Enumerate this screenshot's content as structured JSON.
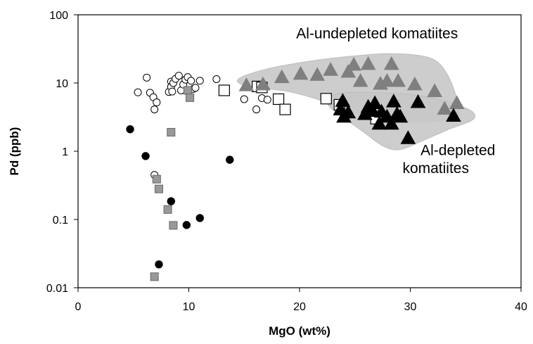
{
  "chart_data": {
    "type": "scatter",
    "xlabel": "MgO (wt%)",
    "ylabel": "Pd (ppb)",
    "xlim": [
      0,
      40
    ],
    "ylim": [
      0.01,
      100
    ],
    "yscale": "log",
    "x_ticks": [
      "0",
      "10",
      "20",
      "30",
      "40"
    ],
    "y_ticks": [
      "0.01",
      "0.1",
      "1",
      "10",
      "100"
    ],
    "grid": false,
    "annotations": [
      {
        "text": "Al-undepleted komatiites",
        "x": 27,
        "y": 45
      },
      {
        "text": "Al-depleted",
        "x": 34.3,
        "y": 0.88
      },
      {
        "text": "komatiites",
        "x": 32.3,
        "y": 0.48
      }
    ],
    "regions": [
      {
        "label": "Al-undepleted komatiites",
        "color": "#c8c8c8",
        "outline": [
          [
            14.5,
            11.5
          ],
          [
            17,
            16
          ],
          [
            21,
            21
          ],
          [
            25,
            25
          ],
          [
            28,
            27
          ],
          [
            31,
            25
          ],
          [
            32.5,
            20
          ],
          [
            33.5,
            12
          ],
          [
            34.2,
            6
          ],
          [
            34.5,
            4
          ],
          [
            34,
            3
          ],
          [
            31,
            2.7
          ],
          [
            28,
            2.8
          ],
          [
            26,
            3.3
          ],
          [
            24.5,
            3.8
          ],
          [
            23,
            4.8
          ],
          [
            21,
            6.2
          ],
          [
            19,
            7.5
          ],
          [
            17,
            8.3
          ],
          [
            15,
            9.2
          ]
        ]
      },
      {
        "label": "Al-depleted komatiites",
        "color": "#c8c8c8",
        "outline": [
          [
            22.5,
            6
          ],
          [
            24,
            7.2
          ],
          [
            27,
            7.2
          ],
          [
            30,
            6.8
          ],
          [
            33,
            5.5
          ],
          [
            35,
            4.3
          ],
          [
            35.8,
            3.5
          ],
          [
            35.5,
            2.8
          ],
          [
            33.5,
            2.1
          ],
          [
            31,
            1.4
          ],
          [
            29,
            1.05
          ],
          [
            27.5,
            1.2
          ],
          [
            26,
            1.8
          ],
          [
            24.5,
            2.7
          ],
          [
            23.2,
            3.8
          ],
          [
            22.5,
            5
          ]
        ]
      }
    ],
    "series": [
      {
        "marker": "open-circle",
        "color": "#ffffff",
        "points": [
          [
            5.4,
            7.3
          ],
          [
            6.2,
            12
          ],
          [
            6.5,
            7.2
          ],
          [
            6.8,
            6.2
          ],
          [
            6.9,
            4.1
          ],
          [
            7.1,
            5.2
          ],
          [
            8.2,
            7.4
          ],
          [
            8.4,
            10.5
          ],
          [
            8.4,
            8.8
          ],
          [
            8.5,
            7.5
          ],
          [
            8.6,
            10
          ],
          [
            8.8,
            11.5
          ],
          [
            9.1,
            12.8
          ],
          [
            9.3,
            7.8
          ],
          [
            9.5,
            9.5
          ],
          [
            9.7,
            11.2
          ],
          [
            9.9,
            12.2
          ],
          [
            10.2,
            10.8
          ],
          [
            10.4,
            8.2
          ],
          [
            10.6,
            8.5
          ],
          [
            11.0,
            10.8
          ],
          [
            12.5,
            11.4
          ],
          [
            13.2,
            8.0
          ],
          [
            15.0,
            5.8
          ],
          [
            16.1,
            4.1
          ],
          [
            16.6,
            6.0
          ],
          [
            17.1,
            5.7
          ],
          [
            6.9,
            0.45
          ]
        ]
      },
      {
        "marker": "filled-circle",
        "color": "#000000",
        "points": [
          [
            4.7,
            2.1
          ],
          [
            6.1,
            0.85
          ],
          [
            8.4,
            0.185
          ],
          [
            9.8,
            0.083
          ],
          [
            11.0,
            0.105
          ],
          [
            13.7,
            0.75
          ],
          [
            7.3,
            0.022
          ]
        ]
      },
      {
        "marker": "open-square",
        "color": "#ffffff",
        "points": [
          [
            13.2,
            7.8
          ],
          [
            16.2,
            8.9
          ],
          [
            16.6,
            8.6
          ],
          [
            18.1,
            5.8
          ],
          [
            18.7,
            4.1
          ],
          [
            22.4,
            5.9
          ],
          [
            23.6,
            4.8
          ],
          [
            26.9,
            3.0
          ]
        ]
      },
      {
        "marker": "gray-square",
        "color": "#999999",
        "points": [
          [
            8.4,
            1.9
          ],
          [
            9.9,
            7.8
          ],
          [
            10.1,
            6.1
          ],
          [
            7.1,
            0.39
          ],
          [
            7.3,
            0.28
          ],
          [
            8.1,
            0.14
          ],
          [
            8.6,
            0.082
          ],
          [
            6.9,
            0.0145
          ]
        ]
      },
      {
        "marker": "gray-triangle",
        "color": "#7f7f7f",
        "points": [
          [
            15.2,
            9.5
          ],
          [
            16.7,
            9.8
          ],
          [
            18.4,
            12.5
          ],
          [
            20.1,
            14
          ],
          [
            21.6,
            13.5
          ],
          [
            22.8,
            16
          ],
          [
            24.4,
            15
          ],
          [
            25.5,
            11
          ],
          [
            26.2,
            19.5
          ],
          [
            24.9,
            19
          ],
          [
            27.3,
            10
          ],
          [
            27.9,
            11
          ],
          [
            28.3,
            19.5
          ],
          [
            28.9,
            11
          ],
          [
            30.4,
            9.8
          ],
          [
            32.2,
            7.8
          ],
          [
            33.1,
            4.3
          ],
          [
            34.2,
            5.2
          ]
        ]
      },
      {
        "marker": "black-triangle",
        "color": "#000000",
        "points": [
          [
            23.7,
            4.2
          ],
          [
            23.9,
            5.6
          ],
          [
            24.0,
            3.3
          ],
          [
            24.4,
            3.8
          ],
          [
            25.9,
            3.6
          ],
          [
            26.2,
            4.6
          ],
          [
            26.6,
            4.0
          ],
          [
            27.2,
            2.6
          ],
          [
            27.4,
            3.9
          ],
          [
            27.9,
            3.3
          ],
          [
            28.3,
            2.6
          ],
          [
            28.5,
            5.5
          ],
          [
            28.8,
            3.6
          ],
          [
            29.1,
            3.3
          ],
          [
            29.8,
            1.6
          ],
          [
            30.7,
            5.4
          ],
          [
            33.9,
            3.4
          ],
          [
            26.8,
            5.2
          ]
        ]
      }
    ]
  }
}
